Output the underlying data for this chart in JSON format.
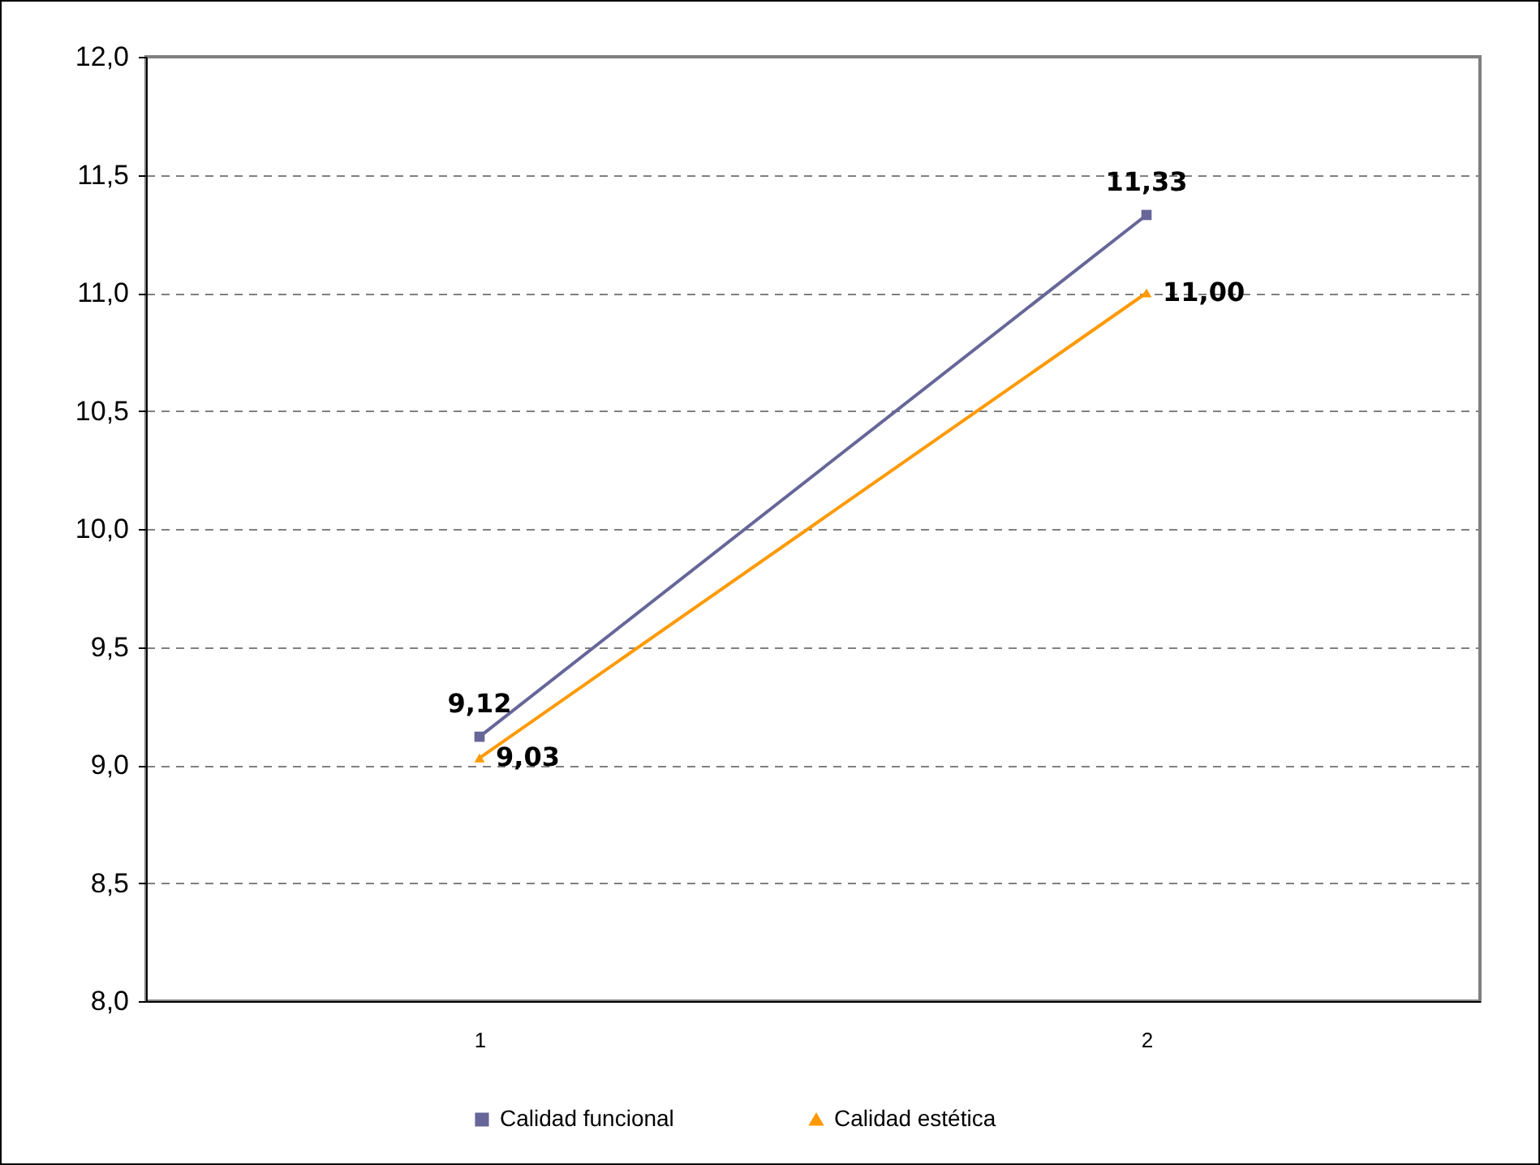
{
  "chart_data": {
    "type": "line",
    "categories": [
      "1",
      "2"
    ],
    "series": [
      {
        "name": "Calidad funcional",
        "color": "#666699",
        "marker": "square",
        "values": [
          9.12,
          11.33
        ],
        "value_labels": [
          "9,12",
          "11,33"
        ]
      },
      {
        "name": "Calidad estética",
        "color": "#ff9900",
        "marker": "triangle",
        "values": [
          9.03,
          11.0
        ],
        "value_labels": [
          "9,03",
          "11,00"
        ]
      }
    ],
    "ylim": [
      8,
      12
    ],
    "yticks": [
      {
        "value": 8,
        "label": "8,0"
      },
      {
        "value": 8.5,
        "label": "8,5"
      },
      {
        "value": 9,
        "label": "9,0"
      },
      {
        "value": 9.5,
        "label": "9,5"
      },
      {
        "value": 10,
        "label": "10,0"
      },
      {
        "value": 10.5,
        "label": "10,5"
      },
      {
        "value": 11,
        "label": "11,0"
      },
      {
        "value": 11.5,
        "label": "11,5"
      },
      {
        "value": 12,
        "label": "12,0"
      }
    ],
    "grid": "y",
    "line_style": "solid",
    "legend": "bottom"
  }
}
